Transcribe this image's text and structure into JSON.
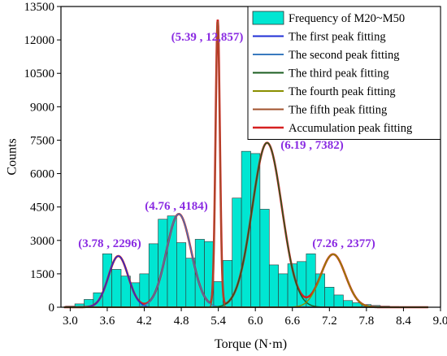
{
  "chart_data": {
    "type": "bar",
    "title": "",
    "xlabel": "Torque (N·m)",
    "ylabel": "Counts",
    "xlim": [
      2.85,
      9.0
    ],
    "ylim": [
      0,
      13500
    ],
    "grid": false,
    "legend_position": "top-right",
    "x_ticks": [
      "3.0",
      "3.6",
      "4.2",
      "4.8",
      "5.4",
      "6.0",
      "6.6",
      "7.2",
      "7.8",
      "8.4",
      "9.0"
    ],
    "y_ticks": [
      "0",
      "1500",
      "3000",
      "4500",
      "6000",
      "7500",
      "9000",
      "10500",
      "12000",
      "13500"
    ],
    "histogram": {
      "name": "Frequency of M20~M50",
      "bin_width": 0.15,
      "bin_centers": [
        3.0,
        3.15,
        3.3,
        3.45,
        3.6,
        3.75,
        3.9,
        4.05,
        4.2,
        4.35,
        4.5,
        4.65,
        4.8,
        4.95,
        5.1,
        5.25,
        5.4,
        5.55,
        5.7,
        5.85,
        6.0,
        6.15,
        6.3,
        6.45,
        6.6,
        6.75,
        6.9,
        7.05,
        7.2,
        7.35,
        7.5,
        7.65,
        7.8,
        7.95,
        8.1,
        8.25,
        8.4,
        8.55,
        8.7
      ],
      "counts": [
        50,
        150,
        350,
        650,
        2400,
        1700,
        1400,
        1100,
        1500,
        2850,
        3950,
        4100,
        2900,
        2200,
        3050,
        2950,
        1150,
        2100,
        4900,
        7000,
        6900,
        4400,
        1900,
        1500,
        1950,
        2050,
        2400,
        1500,
        900,
        550,
        300,
        200,
        120,
        80,
        50,
        30,
        20,
        15,
        10
      ],
      "color": "#00e6d2"
    },
    "series": [
      {
        "name": "The first peak fitting",
        "type": "gaussian",
        "center": 3.78,
        "amplitude": 2296,
        "sigma": 0.16,
        "color": "#1f2fd6"
      },
      {
        "name": "The second peak fitting",
        "type": "gaussian",
        "center": 4.76,
        "amplitude": 4184,
        "sigma": 0.2,
        "color": "#3a7abf"
      },
      {
        "name": "The third peak fitting",
        "type": "gaussian",
        "center": 6.19,
        "amplitude": 7382,
        "sigma": 0.24,
        "color": "#1b5e20"
      },
      {
        "name": "The fourth peak fitting",
        "type": "gaussian",
        "center": 7.26,
        "amplitude": 2377,
        "sigma": 0.2,
        "color": "#8a8f00"
      },
      {
        "name": "The fifth peak fitting",
        "type": "gaussian",
        "center": 5.39,
        "amplitude": 12857,
        "sigma": 0.035,
        "color": "#a0522d"
      },
      {
        "name": "Accumulation peak fitting",
        "type": "sum",
        "color": "#d62020"
      }
    ],
    "annotations": [
      {
        "text": "(5.39 , 12,857)",
        "x": 5.39,
        "y": 12857
      },
      {
        "text": "(6.19 , 7382)",
        "x": 6.19,
        "y": 7382
      },
      {
        "text": "(4.76 , 4184)",
        "x": 4.76,
        "y": 4184
      },
      {
        "text": "(3.78 , 2296)",
        "x": 3.78,
        "y": 2296
      },
      {
        "text": "(7.26 , 2377)",
        "x": 7.26,
        "y": 2377
      }
    ],
    "annotation_color": "#8a2be2"
  }
}
